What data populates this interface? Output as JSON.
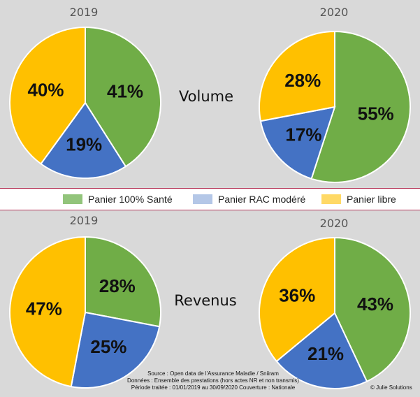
{
  "legend": {
    "items": [
      {
        "label": "Panier 100% Santé",
        "color": "#92c47b"
      },
      {
        "label": "Panier RAC modéré",
        "color": "#b4c7e7"
      },
      {
        "label": "Panier libre",
        "color": "#ffd966"
      }
    ]
  },
  "sections": {
    "top": {
      "label": "Volume"
    },
    "bottom": {
      "label": "Revenus"
    }
  },
  "colors": {
    "green": "#70ad47",
    "blue": "#4472c4",
    "yellow": "#ffc000",
    "panel": "#d9d9d9",
    "divider": "#b7375a"
  },
  "chart_data": [
    {
      "type": "pie",
      "title": "2019",
      "group": "Volume",
      "slices": [
        {
          "name": "Panier 100% Santé",
          "value": 41,
          "label": "41%",
          "color": "#70ad47"
        },
        {
          "name": "Panier RAC modéré",
          "value": 19,
          "label": "19%",
          "color": "#4472c4"
        },
        {
          "name": "Panier libre",
          "value": 40,
          "label": "40%",
          "color": "#ffc000"
        }
      ]
    },
    {
      "type": "pie",
      "title": "2020",
      "group": "Volume",
      "slices": [
        {
          "name": "Panier 100% Santé",
          "value": 55,
          "label": "55%",
          "color": "#70ad47"
        },
        {
          "name": "Panier RAC modéré",
          "value": 17,
          "label": "17%",
          "color": "#4472c4"
        },
        {
          "name": "Panier libre",
          "value": 28,
          "label": "28%",
          "color": "#ffc000"
        }
      ]
    },
    {
      "type": "pie",
      "title": "2019",
      "group": "Revenus",
      "slices": [
        {
          "name": "Panier 100% Santé",
          "value": 28,
          "label": "28%",
          "color": "#70ad47"
        },
        {
          "name": "Panier RAC modéré",
          "value": 25,
          "label": "25%",
          "color": "#4472c4"
        },
        {
          "name": "Panier libre",
          "value": 47,
          "label": "47%",
          "color": "#ffc000"
        }
      ]
    },
    {
      "type": "pie",
      "title": "2020",
      "group": "Revenus",
      "slices": [
        {
          "name": "Panier 100% Santé",
          "value": 43,
          "label": "43%",
          "color": "#70ad47"
        },
        {
          "name": "Panier RAC modéré",
          "value": 21,
          "label": "21%",
          "color": "#4472c4"
        },
        {
          "name": "Panier libre",
          "value": 36,
          "label": "36%",
          "color": "#ffc000"
        }
      ]
    }
  ],
  "source": {
    "line1": "Source : Open data de l'Assurance Maladie / Sniiram",
    "line2": "Données : Ensemble des prestations (hors actes NR et non transmis)",
    "line3": "Période traitée : 01/01/2019 au 30/09/2020 Couverture : Nationale"
  },
  "copyright": "© Julie Solutions"
}
